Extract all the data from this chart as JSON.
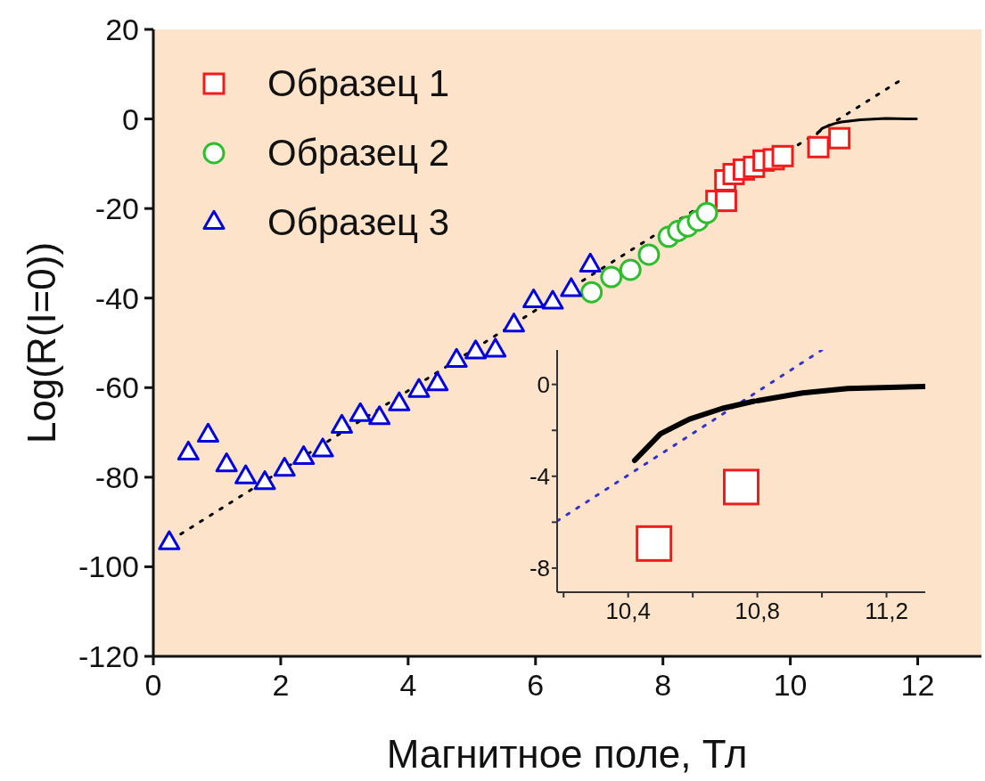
{
  "chart_data": [
    {
      "type": "scatter",
      "xlabel": "Магнитное поле, Тл",
      "ylabel": "Log(R(I=0))",
      "xlim": [
        0,
        13
      ],
      "ylim": [
        -120,
        20
      ],
      "xticks": [
        0,
        2,
        4,
        6,
        8,
        10,
        12
      ],
      "yticks": [
        -120,
        -100,
        -80,
        -60,
        -40,
        -20,
        0,
        20
      ],
      "legend": "top left",
      "series": [
        {
          "name": "Образец 1",
          "color": "#ee1c1c",
          "marker": "square",
          "x": [
            8.84,
            8.99,
            8.98,
            9.11,
            9.27,
            9.43,
            9.58,
            9.74,
            9.88,
            10.44,
            10.77
          ],
          "values": [
            -18.3,
            -18.3,
            -13.7,
            -12.3,
            -11.3,
            -10.7,
            -9.3,
            -9,
            -8.3,
            -6.3,
            -4.3
          ]
        },
        {
          "name": "Образец 2",
          "color": "#2ebd2e",
          "marker": "circle",
          "x": [
            6.88,
            7.19,
            7.49,
            7.78,
            8.09,
            8.24,
            8.39,
            8.55,
            8.69
          ],
          "values": [
            -38.7,
            -35.3,
            -33.7,
            -30.3,
            -26.3,
            -25,
            -24,
            -22.7,
            -21
          ]
        },
        {
          "name": "Образец 3",
          "color": "#0000dd",
          "marker": "triangle",
          "x": [
            0.25,
            0.55,
            0.86,
            1.15,
            1.45,
            1.75,
            2.06,
            2.36,
            2.66,
            2.96,
            3.25,
            3.55,
            3.86,
            4.17,
            4.46,
            4.76,
            5.06,
            5.37,
            5.66,
            5.97,
            6.27,
            6.56,
            6.86
          ],
          "values": [
            -94.7,
            -74.7,
            -70.7,
            -77.3,
            -80,
            -81.3,
            -78.3,
            -75.7,
            -74,
            -68.7,
            -66.1,
            -66.8,
            -63.7,
            -60.7,
            -59.2,
            -54,
            -52.1,
            -51.7,
            -46.1,
            -40.7,
            -41,
            -38.2,
            -32.7
          ]
        },
        {
          "type": "line",
          "color": "#000000",
          "line_style": "dotted",
          "marker": "none",
          "x": [
            0.43,
            11.77
          ],
          "values": [
            -92.7,
            9
          ]
        },
        {
          "type": "line",
          "color": "#000000",
          "line_style": "solid",
          "marker": "none",
          "x": [
            10.42,
            10.5,
            10.6,
            10.7,
            10.8,
            11.1,
            11.5,
            11.98
          ],
          "values": [
            -3.3,
            -2.1,
            -1.5,
            -1,
            -0.7,
            -0.2,
            0.1,
            0
          ]
        }
      ]
    },
    {
      "type": "line",
      "xlim": [
        10.18,
        11.32
      ],
      "ylim": [
        -9.05,
        1.5
      ],
      "xticks": [
        {
          "value": 10.2,
          "label": null
        },
        {
          "value": 10.4,
          "label": "10,4"
        },
        {
          "value": 10.6,
          "label": null
        },
        {
          "value": 10.8,
          "label": "10,8"
        },
        {
          "value": 11,
          "label": null
        },
        {
          "value": 11.2,
          "label": "11,2"
        }
      ],
      "yticks": [
        -8,
        {
          "value": -6,
          "label": null
        },
        -4,
        {
          "value": -2,
          "label": null
        },
        0
      ],
      "series": [
        {
          "color": "#3333cc",
          "line_style": "dotted",
          "marker": "none",
          "x": [
            10.18,
            11
          ],
          "values": [
            -5.95,
            1.5
          ]
        },
        {
          "color": "#000000",
          "line_style": "solid",
          "marker": "none",
          "x": [
            10.42,
            10.5,
            10.59,
            10.69,
            10.79
          ],
          "values": [
            -3.31,
            -2.15,
            -1.51,
            -1.05,
            -0.73
          ]
        },
        {
          "color": "#000000",
          "line_style": "solid",
          "marker": "none",
          "x": [
            10.8,
            10.94,
            11.08,
            11.32
          ],
          "values": [
            -0.71,
            -0.37,
            -0.18,
            -0.09
          ]
        },
        {
          "type": "scatter",
          "color": "#ee1c1c",
          "marker": "square",
          "x": [
            10.48,
            10.75
          ],
          "values": [
            -6.93,
            -4.47
          ]
        }
      ]
    }
  ]
}
